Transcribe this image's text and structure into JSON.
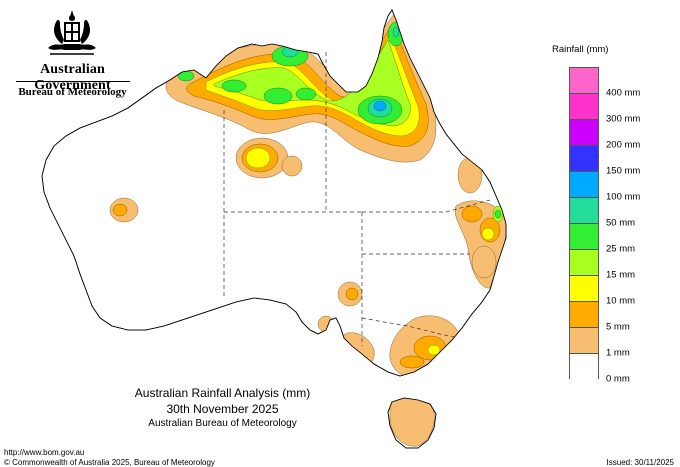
{
  "header": {
    "government": "Australian Government",
    "bureau": "Bureau of Meteorology"
  },
  "legend": {
    "title": "Rainfall (mm)",
    "items": [
      {
        "label": "",
        "color": "#ff66cc"
      },
      {
        "label": "400 mm",
        "color": "#ff33cc"
      },
      {
        "label": "300 mm",
        "color": "#cc00ff"
      },
      {
        "label": "200 mm",
        "color": "#3333ff"
      },
      {
        "label": "150 mm",
        "color": "#00aaff"
      },
      {
        "label": "100 mm",
        "color": "#22dd99"
      },
      {
        "label": "50 mm",
        "color": "#33ee33"
      },
      {
        "label": "25 mm",
        "color": "#aaff22"
      },
      {
        "label": "15 mm",
        "color": "#ffff00"
      },
      {
        "label": "10 mm",
        "color": "#ffaa00"
      },
      {
        "label": "5 mm",
        "color": "#f7bd70"
      },
      {
        "label": "1 mm",
        "color": "#ffffff"
      }
    ],
    "bottom_label": "0 mm"
  },
  "title": {
    "line1": "Australian Rainfall Analysis (mm)",
    "line2": "30th November 2025",
    "line3": "Australian Bureau of Meteorology"
  },
  "footer": {
    "url": "http://www.bom.gov.au",
    "copyright": "© Commonwealth of Australia 2025, Bureau of Meteorology",
    "issued": "Issued: 30/11/2025"
  }
}
